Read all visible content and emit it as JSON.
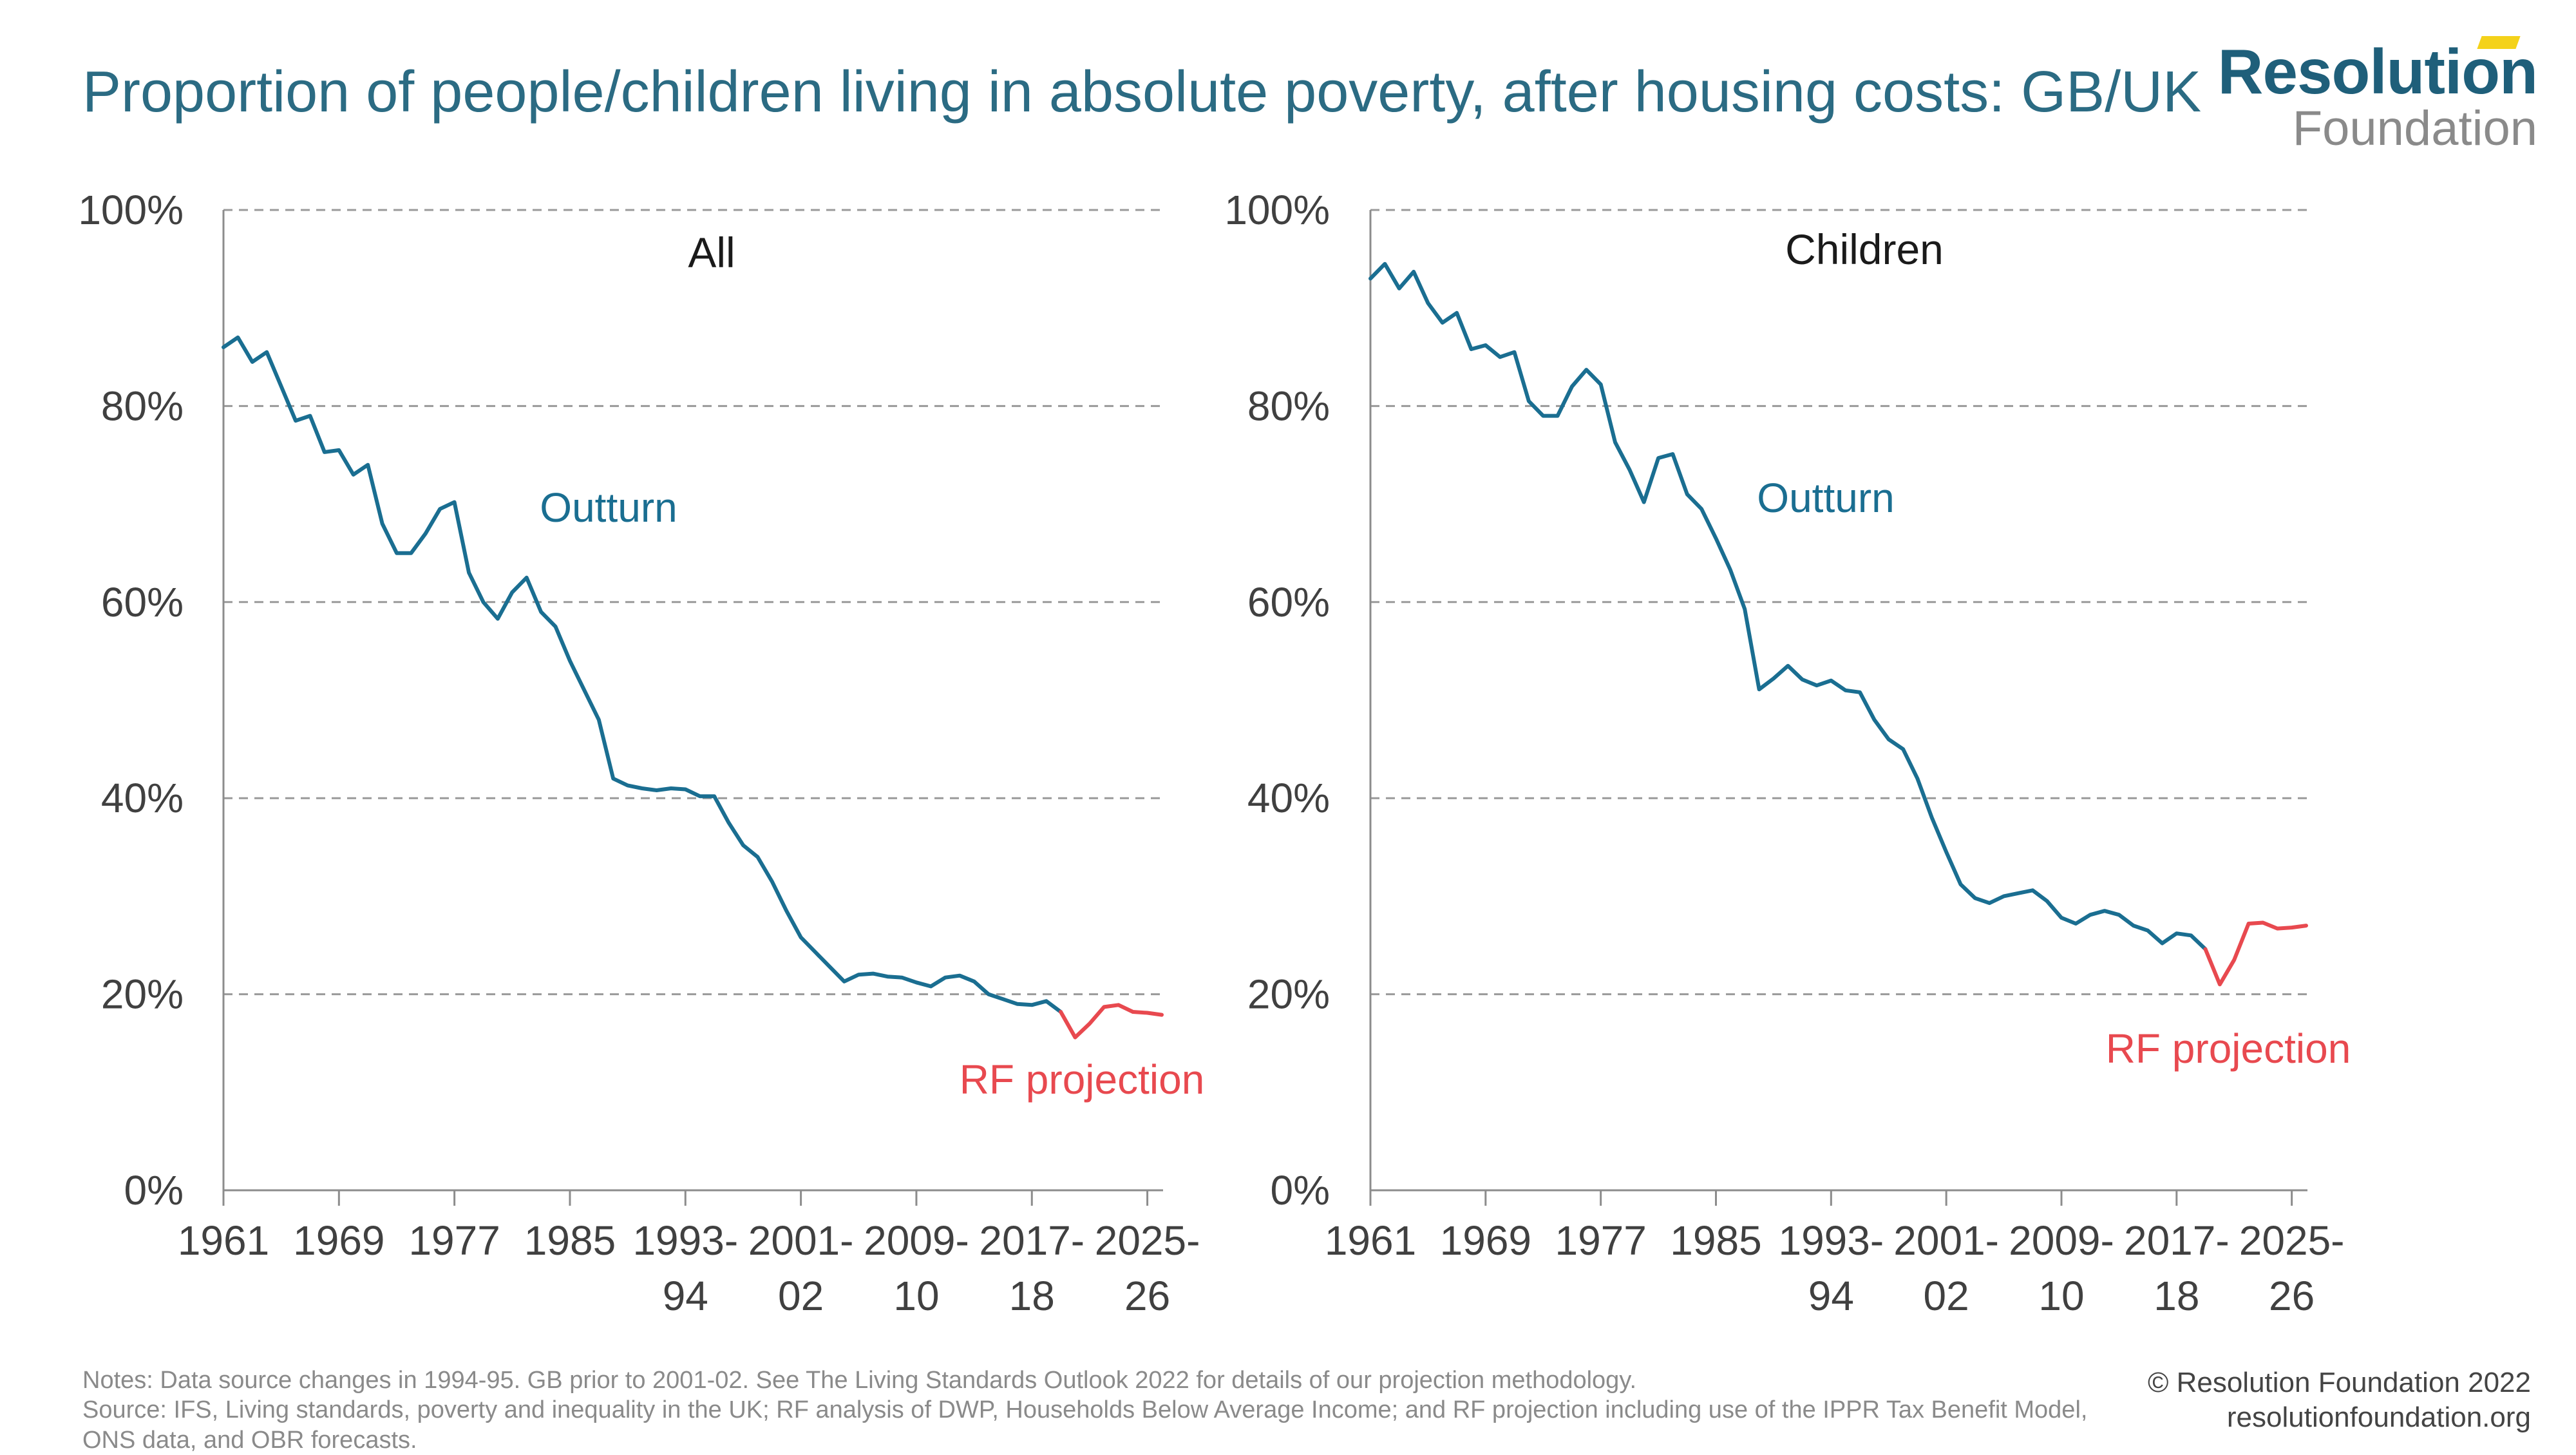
{
  "header": {
    "title": "Proportion of people/children living in absolute poverty, after housing costs: GB/UK"
  },
  "logo": {
    "line1": "Resolution",
    "line2": "Foundation",
    "brand_color": "#1f5f7a",
    "accent_color": "#f4d21a"
  },
  "footer": {
    "notes": "Notes: Data source changes in 1994-95. GB prior to 2001-02. See The Living Standards Outlook 2022 for details of our projection methodology.",
    "source": "Source: IFS, Living standards, poverty and inequality in the UK; RF analysis of DWP, Households Below Average Income; and RF projection including use of the IPPR Tax Benefit Model, ONS data, and OBR forecasts.",
    "copyright": "© Resolution Foundation 2022",
    "website": "resolutionfoundation.org"
  },
  "chart_data": [
    {
      "type": "line",
      "title": "All",
      "ylim": [
        0,
        100
      ],
      "y_ticks": [
        "0%",
        "20%",
        "40%",
        "60%",
        "80%",
        "100%"
      ],
      "x_ticks": [
        [
          "1961"
        ],
        [
          "1969"
        ],
        [
          "1977"
        ],
        [
          "1985"
        ],
        [
          "1993-",
          "94"
        ],
        [
          "2001-",
          "02"
        ],
        [
          "2009-",
          "10"
        ],
        [
          "2017-",
          "18"
        ],
        [
          "2025-",
          "26"
        ]
      ],
      "x_range": [
        1961,
        2026
      ],
      "grid": true,
      "series": [
        {
          "name": "Outturn",
          "color": "#1a6e91",
          "x": [
            1961,
            1962,
            1963,
            1964,
            1965,
            1966,
            1967,
            1968,
            1969,
            1970,
            1971,
            1972,
            1973,
            1974,
            1975,
            1976,
            1977,
            1978,
            1979,
            1980,
            1981,
            1982,
            1983,
            1984,
            1985,
            1986,
            1987,
            1988,
            1989,
            1990,
            1991,
            1992,
            1993,
            1994,
            1995,
            1996,
            1997,
            1998,
            1999,
            2000,
            2001,
            2002,
            2003,
            2004,
            2005,
            2006,
            2007,
            2008,
            2009,
            2010,
            2011,
            2012,
            2013,
            2014,
            2015,
            2016,
            2017,
            2018,
            2019
          ],
          "values": [
            86,
            87,
            84.5,
            85.5,
            82,
            78.5,
            79,
            75.3,
            75.5,
            73,
            74,
            68,
            65,
            65,
            67,
            69.5,
            70.2,
            63,
            60,
            58.3,
            61,
            62.5,
            59,
            57.5,
            54,
            51,
            48,
            42,
            41.3,
            41,
            40.8,
            41,
            40.9,
            40.2,
            40.2,
            37.5,
            35.2,
            34,
            31.5,
            28.5,
            25.8,
            24.3,
            22.8,
            21.3,
            22,
            22.1,
            21.8,
            21.7,
            21.2,
            20.8,
            21.7,
            21.9,
            21.3,
            20,
            19.5,
            19,
            18.9,
            19.3,
            18.2
          ]
        },
        {
          "name": "RF projection",
          "color": "#e8494f",
          "x": [
            2019,
            2020,
            2021,
            2022,
            2023,
            2024,
            2025,
            2026
          ],
          "values": [
            18.2,
            15.6,
            17,
            18.7,
            18.9,
            18.2,
            18.1,
            17.9
          ]
        }
      ],
      "annotations": [
        {
          "text": "Outturn",
          "color": "#1a6e91"
        },
        {
          "text": "RF projection",
          "color": "#e8494f"
        }
      ]
    },
    {
      "type": "line",
      "title": "Children",
      "ylim": [
        0,
        100
      ],
      "y_ticks": [
        "0%",
        "20%",
        "40%",
        "60%",
        "80%",
        "100%"
      ],
      "x_ticks": [
        [
          "1961"
        ],
        [
          "1969"
        ],
        [
          "1977"
        ],
        [
          "1985"
        ],
        [
          "1993-",
          "94"
        ],
        [
          "2001-",
          "02"
        ],
        [
          "2009-",
          "10"
        ],
        [
          "2017-",
          "18"
        ],
        [
          "2025-",
          "26"
        ]
      ],
      "x_range": [
        1961,
        2026
      ],
      "grid": true,
      "series": [
        {
          "name": "Outturn",
          "color": "#1a6e91",
          "x": [
            1961,
            1962,
            1963,
            1964,
            1965,
            1966,
            1967,
            1968,
            1969,
            1970,
            1971,
            1972,
            1973,
            1974,
            1975,
            1976,
            1977,
            1978,
            1979,
            1980,
            1981,
            1982,
            1983,
            1984,
            1985,
            1986,
            1987,
            1988,
            1989,
            1990,
            1991,
            1992,
            1993,
            1994,
            1995,
            1996,
            1997,
            1998,
            1999,
            2000,
            2001,
            2002,
            2003,
            2004,
            2005,
            2006,
            2007,
            2008,
            2009,
            2010,
            2011,
            2012,
            2013,
            2014,
            2015,
            2016,
            2017,
            2018,
            2019
          ],
          "values": [
            93,
            94.5,
            92,
            93.7,
            90.5,
            88.5,
            89.5,
            85.8,
            86.2,
            85,
            85.5,
            80.5,
            79,
            79,
            82,
            83.7,
            82.2,
            76.3,
            73.5,
            70.2,
            74.7,
            75.1,
            71,
            69.5,
            66.5,
            63.3,
            59.3,
            51.1,
            52.2,
            53.5,
            52.1,
            51.5,
            52,
            51,
            50.8,
            48,
            46,
            45,
            42,
            38,
            34.5,
            31.2,
            29.8,
            29.3,
            30,
            30.3,
            30.6,
            29.5,
            27.8,
            27.2,
            28.1,
            28.5,
            28.1,
            27,
            26.5,
            25.2,
            26.2,
            26,
            24.6
          ],
          "end_value": 24.6
        },
        {
          "name": "RF projection",
          "color": "#e8494f",
          "x": [
            2019,
            2020,
            2021,
            2022,
            2023,
            2024,
            2025,
            2026
          ],
          "values": [
            24.6,
            21,
            23.5,
            27.2,
            27.3,
            26.7,
            26.8,
            27
          ]
        }
      ],
      "annotations": [
        {
          "text": "Outturn",
          "color": "#1a6e91"
        },
        {
          "text": "RF projection",
          "color": "#e8494f"
        }
      ]
    }
  ]
}
